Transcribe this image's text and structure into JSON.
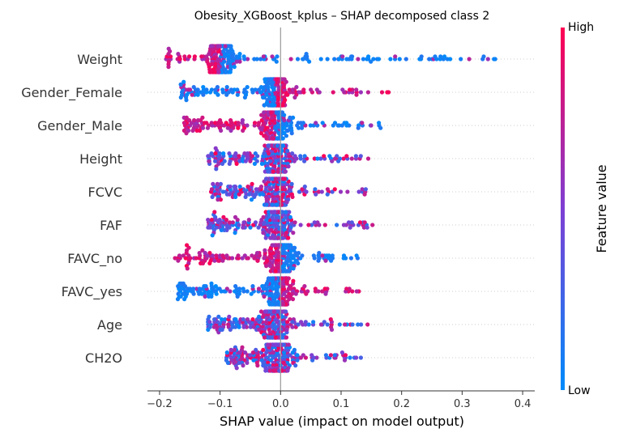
{
  "chart_data": {
    "type": "scatter",
    "subtype": "shap-beeswarm",
    "title": "Obesity_XGBoost_kplus – SHAP decomposed class 2",
    "xlabel": "SHAP value (impact on model output)",
    "xlim": [
      -0.22,
      0.42
    ],
    "xticks": [
      -0.2,
      -0.1,
      0.0,
      0.1,
      0.2,
      0.3,
      0.4
    ],
    "xtick_labels": [
      "−0.2",
      "−0.1",
      "0.0",
      "0.1",
      "0.2",
      "0.3",
      "0.4"
    ],
    "zero_line": true,
    "grid": false,
    "colorbar": {
      "label": "Feature value",
      "high_label": "High",
      "low_label": "Low",
      "low_color": "#008bfb",
      "mid_color": "#7e3fd4",
      "high_color": "#ff0052"
    },
    "features": [
      {
        "name": "Weight",
        "min": -0.19,
        "max": 0.395,
        "center": -0.1,
        "low_side": "right"
      },
      {
        "name": "Gender_Female",
        "min": -0.165,
        "max": 0.185,
        "center": -0.01,
        "low_side": "left"
      },
      {
        "name": "Gender_Male",
        "min": -0.16,
        "max": 0.18,
        "center": -0.01,
        "low_side": "right"
      },
      {
        "name": "Height",
        "min": -0.12,
        "max": 0.145,
        "center": -0.005,
        "low_side": "mixed"
      },
      {
        "name": "FCVC",
        "min": -0.115,
        "max": 0.145,
        "center": -0.005,
        "low_side": "mixed"
      },
      {
        "name": "FAF",
        "min": -0.12,
        "max": 0.155,
        "center": -0.005,
        "low_side": "mixed"
      },
      {
        "name": "FAVC_no",
        "min": -0.175,
        "max": 0.13,
        "center": 0.0,
        "low_side": "right"
      },
      {
        "name": "FAVC_yes",
        "min": -0.17,
        "max": 0.135,
        "center": 0.0,
        "low_side": "left"
      },
      {
        "name": "Age",
        "min": -0.12,
        "max": 0.155,
        "center": -0.01,
        "low_side": "mixed"
      },
      {
        "name": "CH2O",
        "min": -0.09,
        "max": 0.135,
        "center": -0.005,
        "low_side": "mixed"
      }
    ]
  }
}
